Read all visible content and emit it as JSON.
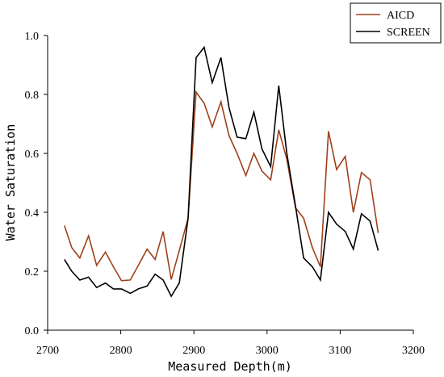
{
  "chart_data": {
    "type": "line",
    "xlabel": "Measured Depth(m)",
    "ylabel": "Water Saturation",
    "xlim": [
      2700,
      3200
    ],
    "ylim": [
      0.0,
      1.0
    ],
    "x_ticks": [
      "2700",
      "2800",
      "2900",
      "3000",
      "3100",
      "3200"
    ],
    "y_ticks": [
      "0.0",
      "0.2",
      "0.4",
      "0.6",
      "0.8",
      "1.0"
    ],
    "grid": false,
    "legend": "top-right",
    "series": [
      {
        "name": "AICD",
        "color": "#a0401a",
        "x": [
          2723,
          2733,
          2744,
          2756,
          2767,
          2779,
          2790,
          2801,
          2813,
          2824,
          2836,
          2847,
          2858,
          2869,
          2880,
          2892,
          2903,
          2914,
          2925,
          2937,
          2948,
          2959,
          2971,
          2982,
          2993,
          3005,
          3016,
          3027,
          3039,
          3050,
          3062,
          3073,
          3084,
          3095,
          3107,
          3118,
          3129,
          3141,
          3152
        ],
        "y": [
          0.355,
          0.28,
          0.245,
          0.32,
          0.22,
          0.265,
          0.215,
          0.168,
          0.17,
          0.22,
          0.275,
          0.24,
          0.335,
          0.172,
          0.27,
          0.38,
          0.808,
          0.77,
          0.69,
          0.775,
          0.66,
          0.6,
          0.525,
          0.6,
          0.54,
          0.51,
          0.68,
          0.58,
          0.415,
          0.38,
          0.28,
          0.215,
          0.675,
          0.545,
          0.59,
          0.4,
          0.535,
          0.51,
          0.33
        ]
      },
      {
        "name": "SCREEN",
        "color": "#000000",
        "x": [
          2723,
          2733,
          2744,
          2756,
          2767,
          2779,
          2790,
          2801,
          2813,
          2824,
          2836,
          2847,
          2858,
          2869,
          2880,
          2892,
          2903,
          2914,
          2925,
          2937,
          2948,
          2959,
          2971,
          2982,
          2993,
          3005,
          3016,
          3027,
          3039,
          3050,
          3062,
          3073,
          3084,
          3095,
          3107,
          3118,
          3129,
          3141,
          3152
        ],
        "y": [
          0.24,
          0.2,
          0.17,
          0.18,
          0.145,
          0.16,
          0.14,
          0.14,
          0.125,
          0.14,
          0.15,
          0.19,
          0.17,
          0.115,
          0.16,
          0.38,
          0.925,
          0.96,
          0.84,
          0.925,
          0.755,
          0.655,
          0.65,
          0.74,
          0.615,
          0.555,
          0.83,
          0.6,
          0.42,
          0.245,
          0.215,
          0.17,
          0.4,
          0.36,
          0.335,
          0.275,
          0.395,
          0.37,
          0.27
        ]
      }
    ]
  }
}
